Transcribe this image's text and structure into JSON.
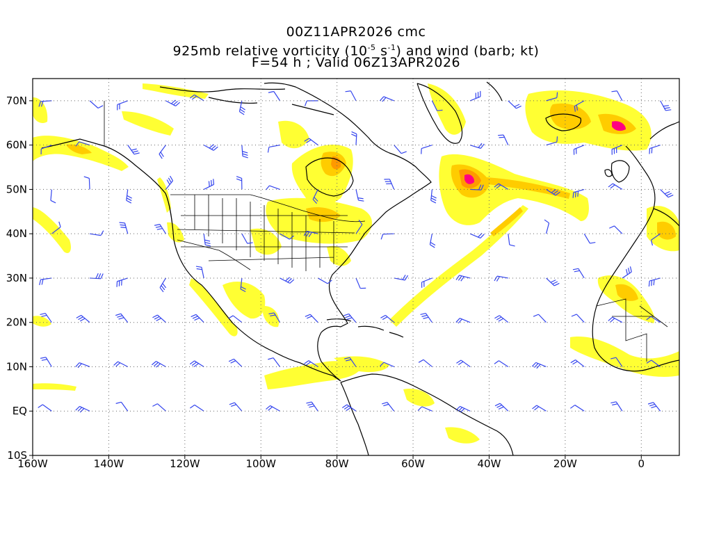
{
  "title": {
    "line1": "00Z11APR2026 cmc",
    "line2_prefix": "925mb relative vorticity (10",
    "line2_exp1": "-5",
    "line2_mid": " s",
    "line2_exp2": "-1",
    "line2_suffix": ") and wind (barb; kt)",
    "line3": "F=54 h ; Valid 06Z13APR2026"
  },
  "map": {
    "lon_range": [
      -160,
      10
    ],
    "lat_range": [
      -10,
      75
    ],
    "lat_ticks": [
      {
        "value": 70,
        "label": "70N"
      },
      {
        "value": 60,
        "label": "60N"
      },
      {
        "value": 50,
        "label": "50N"
      },
      {
        "value": 40,
        "label": "40N"
      },
      {
        "value": 30,
        "label": "30N"
      },
      {
        "value": 20,
        "label": "20N"
      },
      {
        "value": 10,
        "label": "10N"
      },
      {
        "value": 0,
        "label": "EQ"
      },
      {
        "value": -10,
        "label": "10S"
      }
    ],
    "lon_ticks": [
      {
        "value": -160,
        "label": "160W"
      },
      {
        "value": -140,
        "label": "140W"
      },
      {
        "value": -120,
        "label": "120W"
      },
      {
        "value": -100,
        "label": "100W"
      },
      {
        "value": -80,
        "label": "80W"
      },
      {
        "value": -60,
        "label": "60W"
      },
      {
        "value": -40,
        "label": "40W"
      },
      {
        "value": -20,
        "label": "20W"
      },
      {
        "value": 0,
        "label": "0"
      }
    ],
    "grid_lines": "dotted",
    "colors": {
      "vort_low": "#ffff33",
      "vort_mid": "#ffcc00",
      "vort_high": "#ff9900",
      "vort_max": "#ff0080",
      "coastline": "#000000",
      "barb": "#3344ee"
    }
  }
}
